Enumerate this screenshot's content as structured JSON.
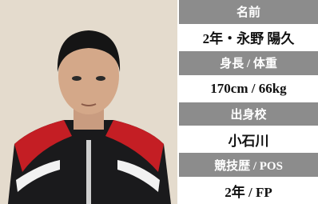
{
  "profile": {
    "rows": [
      {
        "label": "名前",
        "value": "2年・永野 陽久"
      },
      {
        "label": "身長 / 体重",
        "value": "170cm / 66kg"
      },
      {
        "label": "出身校",
        "value": "小石川"
      },
      {
        "label": "競技歴 / POS",
        "value": "2年 / FP"
      }
    ]
  }
}
